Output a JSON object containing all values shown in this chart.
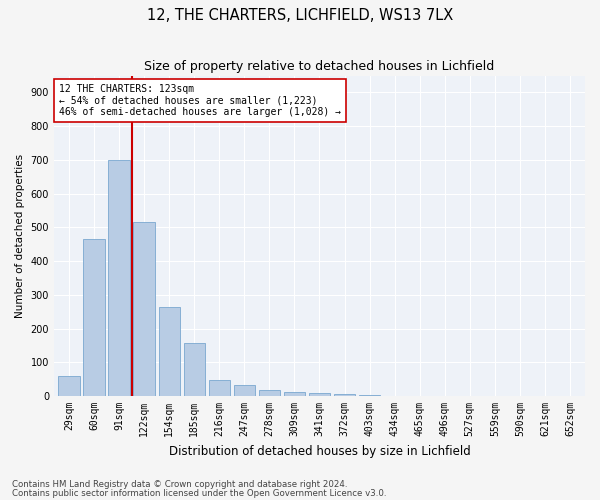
{
  "title1": "12, THE CHARTERS, LICHFIELD, WS13 7LX",
  "title2": "Size of property relative to detached houses in Lichfield",
  "xlabel": "Distribution of detached houses by size in Lichfield",
  "ylabel": "Number of detached properties",
  "categories": [
    "29sqm",
    "60sqm",
    "91sqm",
    "122sqm",
    "154sqm",
    "185sqm",
    "216sqm",
    "247sqm",
    "278sqm",
    "309sqm",
    "341sqm",
    "372sqm",
    "403sqm",
    "434sqm",
    "465sqm",
    "496sqm",
    "527sqm",
    "559sqm",
    "590sqm",
    "621sqm",
    "652sqm"
  ],
  "values": [
    60,
    465,
    700,
    515,
    265,
    158,
    47,
    33,
    18,
    13,
    10,
    5,
    2,
    0,
    0,
    0,
    0,
    0,
    0,
    0,
    0
  ],
  "bar_color": "#b8cce4",
  "bar_edge_color": "#7aa8d0",
  "vline_color": "#cc0000",
  "annotation_text": "12 THE CHARTERS: 123sqm\n← 54% of detached houses are smaller (1,223)\n46% of semi-detached houses are larger (1,028) →",
  "annotation_box_color": "#ffffff",
  "annotation_box_edge": "#cc0000",
  "ylim": [
    0,
    950
  ],
  "yticks": [
    0,
    100,
    200,
    300,
    400,
    500,
    600,
    700,
    800,
    900
  ],
  "footer1": "Contains HM Land Registry data © Crown copyright and database right 2024.",
  "footer2": "Contains public sector information licensed under the Open Government Licence v3.0.",
  "bg_color": "#eef2f8",
  "grid_color": "#ffffff",
  "title1_fontsize": 10.5,
  "title2_fontsize": 9,
  "xlabel_fontsize": 8.5,
  "ylabel_fontsize": 7.5,
  "tick_fontsize": 7,
  "annotation_fontsize": 7,
  "footer_fontsize": 6.2
}
